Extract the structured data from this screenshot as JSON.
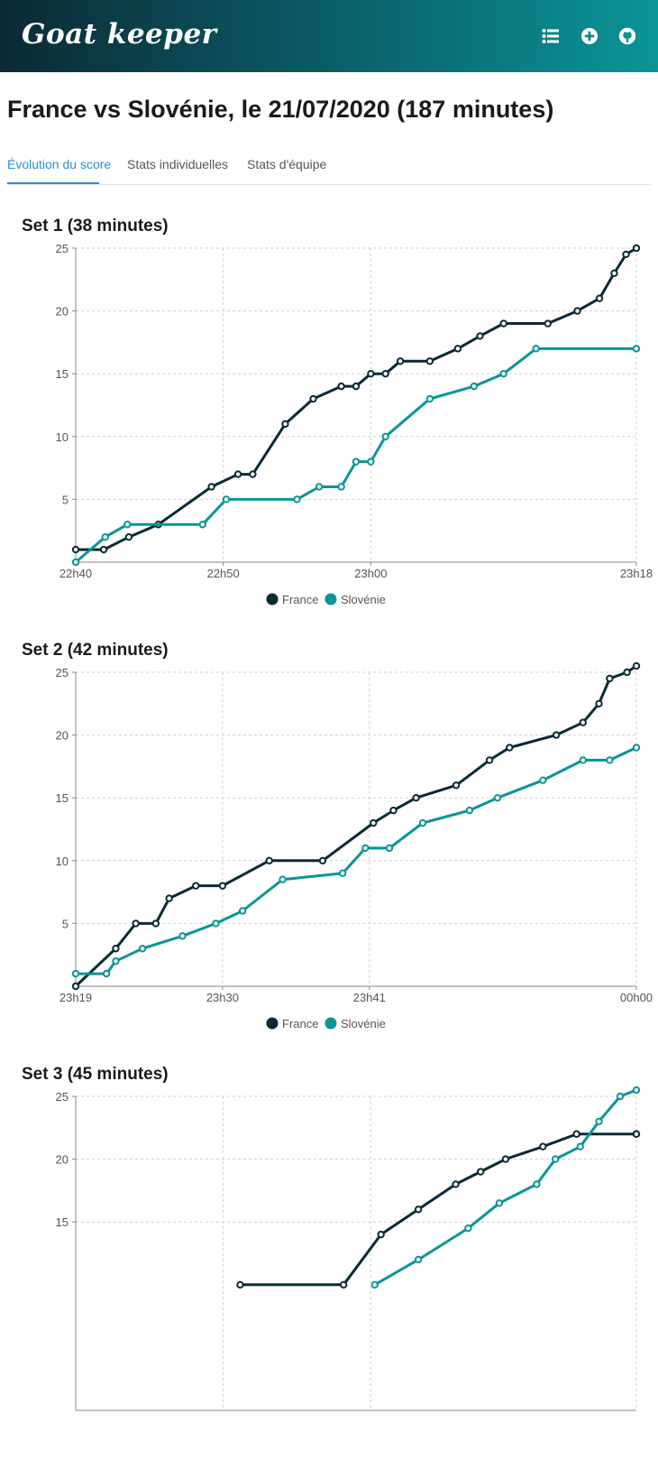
{
  "app": {
    "name": "Goat keeper"
  },
  "nav": {
    "icons": [
      "list-icon",
      "add-icon",
      "github-icon"
    ]
  },
  "page": {
    "title": "France vs Slovénie, le 21/07/2020 (187 minutes)"
  },
  "tabs": [
    {
      "label": "Évolution du score",
      "active": true
    },
    {
      "label": "Stats individuelles",
      "active": false
    },
    {
      "label": "Stats d'équipe",
      "active": false
    }
  ],
  "colors": {
    "France": "#0b2a35",
    "Slovenie": "#0a9597",
    "accent": "#2a8fd6"
  },
  "sets": [
    {
      "title": "Set 1 (38 minutes)",
      "chart_data": {
        "type": "line",
        "xlabel": "",
        "ylabel": "",
        "xlim": [
          0,
          38
        ],
        "ylim": [
          0,
          25
        ],
        "grid": true,
        "legend": "bottom",
        "x_ticks": [
          {
            "label": "22h40",
            "value": 0
          },
          {
            "label": "22h50",
            "value": 10
          },
          {
            "label": "23h00",
            "value": 20
          },
          {
            "label": "23h18",
            "value": 38
          }
        ],
        "y_ticks": [
          5,
          10,
          15,
          20,
          25
        ],
        "series": [
          {
            "name": "France",
            "points": [
              [
                0,
                1
              ],
              [
                1.9,
                1
              ],
              [
                3.6,
                2
              ],
              [
                5.6,
                3
              ],
              [
                9.2,
                6
              ],
              [
                11,
                7
              ],
              [
                12,
                7
              ],
              [
                14.2,
                11
              ],
              [
                16.1,
                13
              ],
              [
                18,
                14
              ],
              [
                19,
                14
              ],
              [
                20,
                15
              ],
              [
                21,
                15
              ],
              [
                22,
                16
              ],
              [
                24,
                16
              ],
              [
                25.9,
                17
              ],
              [
                27.4,
                18
              ],
              [
                29,
                19
              ],
              [
                32,
                19
              ],
              [
                34,
                20
              ],
              [
                35.5,
                21
              ],
              [
                36.5,
                23
              ],
              [
                37.3,
                24.5
              ],
              [
                38,
                25
              ]
            ]
          },
          {
            "name": "Slovénie",
            "points": [
              [
                0,
                0
              ],
              [
                2,
                2
              ],
              [
                3.5,
                3
              ],
              [
                8.6,
                3
              ],
              [
                10.2,
                5
              ],
              [
                15,
                5
              ],
              [
                16.5,
                6
              ],
              [
                18,
                6
              ],
              [
                19,
                8
              ],
              [
                20,
                8
              ],
              [
                21,
                10
              ],
              [
                24,
                13
              ],
              [
                27,
                14
              ],
              [
                29,
                15
              ],
              [
                31.2,
                17
              ],
              [
                38,
                17
              ]
            ]
          }
        ]
      }
    },
    {
      "title": "Set 2 (42 minutes)",
      "chart_data": {
        "type": "line",
        "xlabel": "",
        "ylabel": "",
        "xlim": [
          0,
          42
        ],
        "ylim": [
          0,
          25
        ],
        "grid": true,
        "legend": "bottom",
        "x_ticks": [
          {
            "label": "23h19",
            "value": 0
          },
          {
            "label": "23h30",
            "value": 11
          },
          {
            "label": "23h41",
            "value": 22
          },
          {
            "label": "00h00",
            "value": 42
          }
        ],
        "y_ticks": [
          5,
          10,
          15,
          20,
          25
        ],
        "series": [
          {
            "name": "France",
            "points": [
              [
                0,
                0
              ],
              [
                3,
                3
              ],
              [
                4.5,
                5
              ],
              [
                6,
                5
              ],
              [
                7,
                7
              ],
              [
                9,
                8
              ],
              [
                11,
                8
              ],
              [
                14.5,
                10
              ],
              [
                18.5,
                10
              ],
              [
                22.3,
                13
              ],
              [
                23.8,
                14
              ],
              [
                25.5,
                15
              ],
              [
                28.5,
                16
              ],
              [
                31,
                18
              ],
              [
                32.5,
                19
              ],
              [
                36,
                20
              ],
              [
                38,
                21
              ],
              [
                39.2,
                22.5
              ],
              [
                40,
                24.5
              ],
              [
                41.3,
                25
              ],
              [
                42,
                25.5
              ]
            ]
          },
          {
            "name": "Slovénie",
            "points": [
              [
                0,
                1
              ],
              [
                2.3,
                1
              ],
              [
                3,
                2
              ],
              [
                5,
                3
              ],
              [
                8,
                4
              ],
              [
                10.5,
                5
              ],
              [
                12.5,
                6
              ],
              [
                15.5,
                8.5
              ],
              [
                20,
                9
              ],
              [
                21.7,
                11
              ],
              [
                23.5,
                11
              ],
              [
                26,
                13
              ],
              [
                29.5,
                14
              ],
              [
                31.6,
                15
              ],
              [
                35,
                16.4
              ],
              [
                38,
                18
              ],
              [
                40,
                18
              ],
              [
                42,
                19
              ]
            ]
          }
        ]
      }
    },
    {
      "title": "Set 3 (45 minutes)",
      "chart_data": {
        "type": "line",
        "xlabel": "",
        "ylabel": "",
        "xlim": [
          0,
          45
        ],
        "ylim": [
          0,
          25
        ],
        "grid": true,
        "legend": "bottom",
        "x_ticks": [],
        "y_ticks": [
          15,
          20,
          25
        ],
        "series": [
          {
            "name": "France",
            "points": [
              [
                13.2,
                10
              ],
              [
                21.5,
                10
              ],
              [
                24.5,
                14
              ],
              [
                27.5,
                16
              ],
              [
                30.5,
                18
              ],
              [
                32.5,
                19
              ],
              [
                34.5,
                20
              ],
              [
                37.5,
                21
              ],
              [
                40.2,
                22
              ],
              [
                45,
                22
              ]
            ]
          },
          {
            "name": "Slovénie",
            "points": [
              [
                24,
                10
              ],
              [
                27.5,
                12
              ],
              [
                31.5,
                14.5
              ],
              [
                34,
                16.5
              ],
              [
                37,
                18
              ],
              [
                38.5,
                20
              ],
              [
                40.5,
                21
              ],
              [
                42,
                23
              ],
              [
                43.7,
                25
              ],
              [
                45,
                25.5
              ]
            ]
          }
        ]
      }
    }
  ]
}
